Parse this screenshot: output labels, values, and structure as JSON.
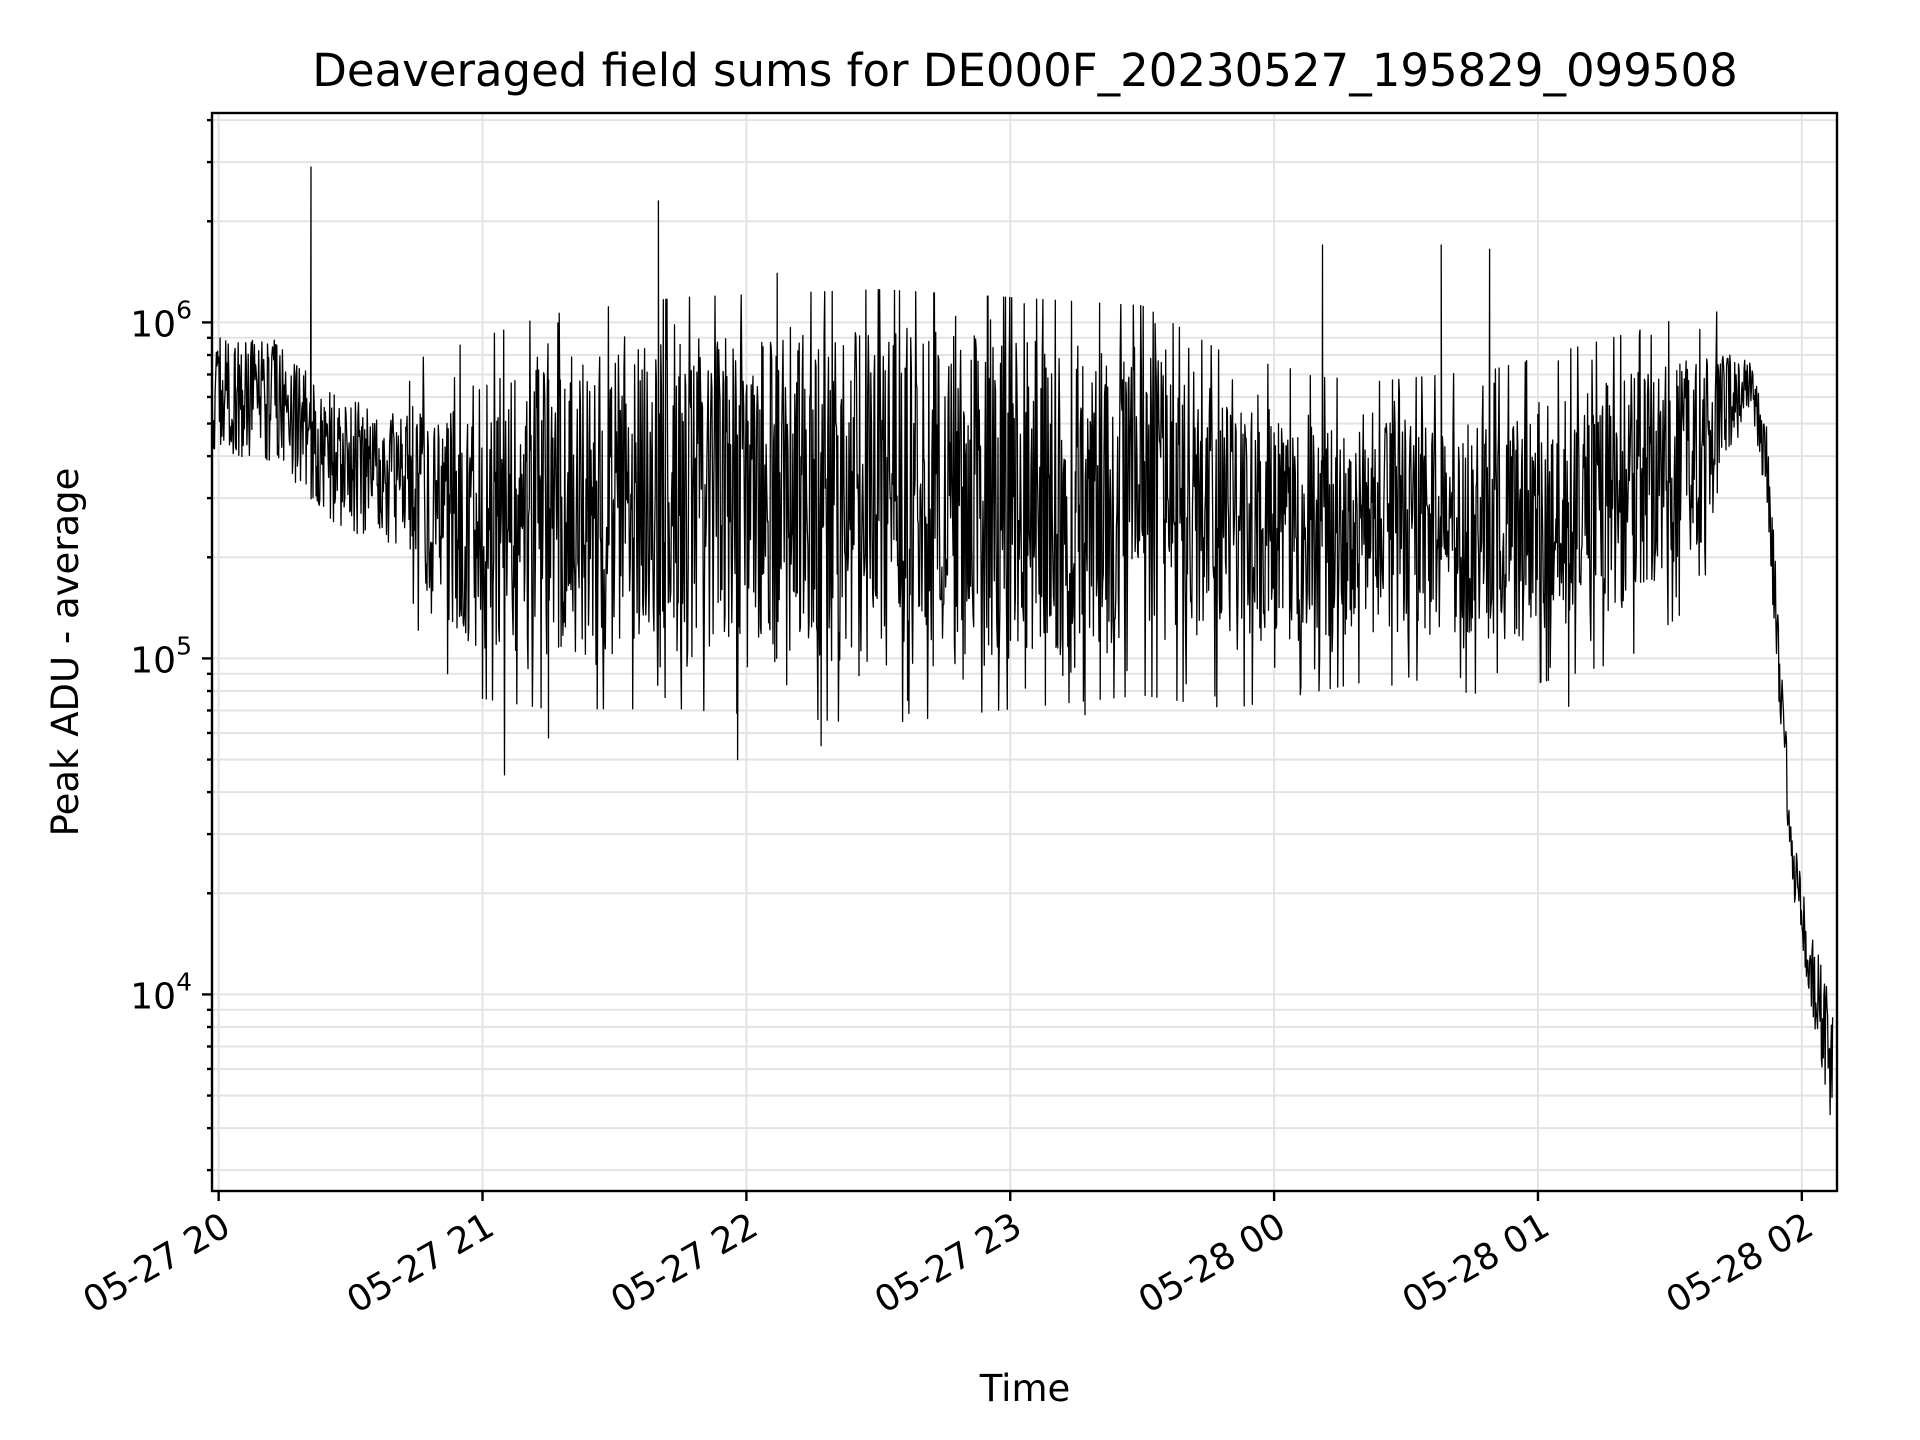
{
  "chart_data": {
    "type": "line",
    "title": "Deaveraged field sums for DE000F_20230527_195829_099508",
    "xlabel": "Time",
    "ylabel": "Peak ADU - average",
    "yscale": "log",
    "grid": true,
    "line_color": "#000000",
    "grid_color": "#e3e3e3",
    "xlim": [
      "2023-05-27 19:58:29",
      "2023-05-28 02:08:00"
    ],
    "ylim": [
      2600,
      4200000
    ],
    "x_ticks": [
      {
        "t": "2023-05-27 20:00",
        "label": "05-27 20"
      },
      {
        "t": "2023-05-27 21:00",
        "label": "05-27 21"
      },
      {
        "t": "2023-05-27 22:00",
        "label": "05-27 22"
      },
      {
        "t": "2023-05-27 23:00",
        "label": "05-27 23"
      },
      {
        "t": "2023-05-28 00:00",
        "label": "05-28 00"
      },
      {
        "t": "2023-05-28 01:00",
        "label": "05-28 01"
      },
      {
        "t": "2023-05-28 02:00",
        "label": "05-28 02"
      }
    ],
    "y_ticks": [
      {
        "value": 10000,
        "base": "10",
        "exp": "4"
      },
      {
        "value": 100000,
        "base": "10",
        "exp": "5"
      },
      {
        "value": 1000000,
        "base": "10",
        "exp": "6"
      }
    ],
    "envelope": [
      {
        "t": "2023-05-27 19:58:29",
        "low": 420000,
        "high": 900000
      },
      {
        "t": "2023-05-27 20:15",
        "low": 370000,
        "high": 900000
      },
      {
        "t": "2023-05-27 20:25",
        "low": 240000,
        "high": 620000
      },
      {
        "t": "2023-05-27 20:40",
        "low": 220000,
        "high": 560000
      },
      {
        "t": "2023-05-27 20:55",
        "low": 110000,
        "high": 650000
      },
      {
        "t": "2023-05-27 21:15",
        "low": 100000,
        "high": 800000
      },
      {
        "t": "2023-05-27 21:45",
        "low": 100000,
        "high": 900000
      },
      {
        "t": "2023-05-27 22:30",
        "low": 90000,
        "high": 950000
      },
      {
        "t": "2023-05-27 23:00",
        "low": 100000,
        "high": 900000
      },
      {
        "t": "2023-05-27 23:30",
        "low": 110000,
        "high": 850000
      },
      {
        "t": "2023-05-27 23:50",
        "low": 100000,
        "high": 600000
      },
      {
        "t": "2023-05-28 00:20",
        "low": 120000,
        "high": 500000
      },
      {
        "t": "2023-05-28 00:50",
        "low": 110000,
        "high": 550000
      },
      {
        "t": "2023-05-28 01:20",
        "low": 140000,
        "high": 700000
      },
      {
        "t": "2023-05-28 01:38",
        "low": 220000,
        "high": 820000
      },
      {
        "t": "2023-05-28 01:48",
        "low": 560000,
        "high": 800000
      },
      {
        "t": "2023-05-28 01:52",
        "low": 300000,
        "high": 500000
      },
      {
        "t": "2023-05-28 01:55",
        "low": 60000,
        "high": 120000
      },
      {
        "t": "2023-05-28 01:58",
        "low": 20000,
        "high": 30000
      },
      {
        "t": "2023-05-28 02:02",
        "low": 9000,
        "high": 16000
      },
      {
        "t": "2023-05-28 02:07",
        "low": 4000,
        "high": 9000
      }
    ],
    "spikes": [
      {
        "t": "2023-05-27 20:21",
        "value": 2900000
      },
      {
        "t": "2023-05-27 21:40",
        "value": 2300000
      },
      {
        "t": "2023-05-27 22:07",
        "value": 1400000
      },
      {
        "t": "2023-05-27 21:05",
        "value": 45000
      },
      {
        "t": "2023-05-27 21:15",
        "value": 58000
      },
      {
        "t": "2023-05-27 21:58",
        "value": 50000
      },
      {
        "t": "2023-05-27 22:17",
        "value": 55000
      },
      {
        "t": "2023-05-27 23:17",
        "value": 68000
      },
      {
        "t": "2023-05-28 00:11",
        "value": 1700000
      },
      {
        "t": "2023-05-28 00:38",
        "value": 1700000
      },
      {
        "t": "2023-05-28 00:49",
        "value": 1650000
      },
      {
        "t": "2023-05-28 01:07",
        "value": 72000
      }
    ]
  }
}
